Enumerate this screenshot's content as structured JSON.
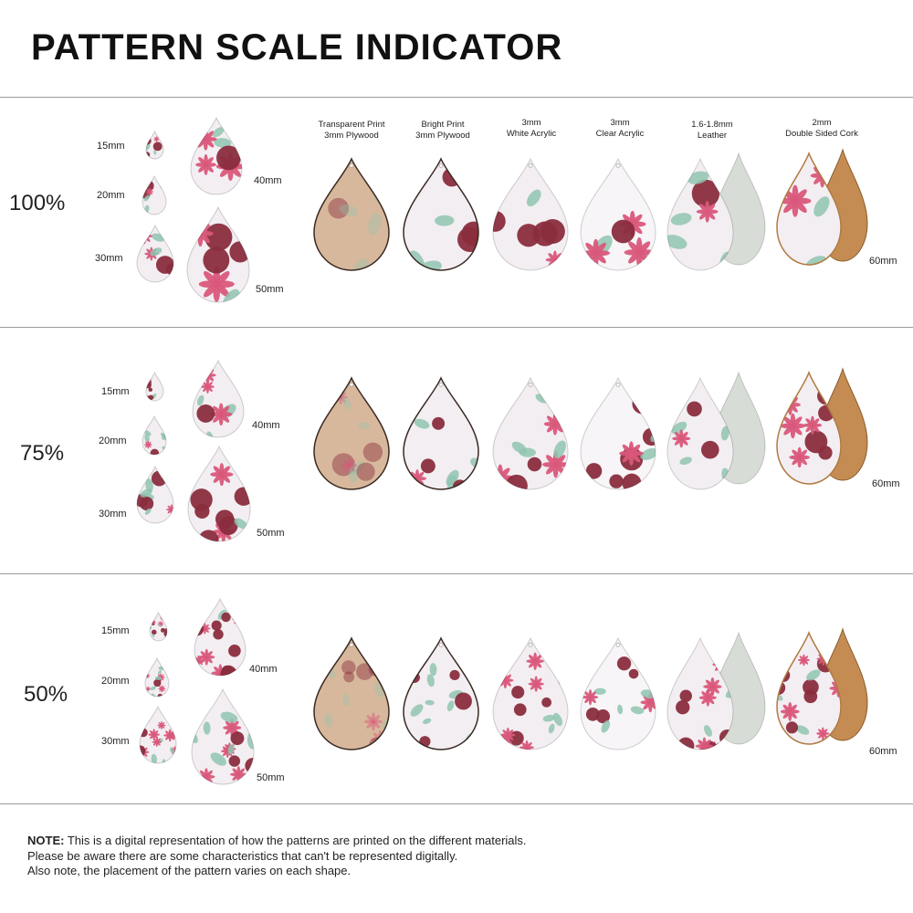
{
  "title": "PATTERN SCALE INDICATOR",
  "materials": [
    {
      "line1": "Transparent Print",
      "line2": "3mm Plywood"
    },
    {
      "line1": "Bright Print",
      "line2": "3mm Plywood"
    },
    {
      "line1": "3mm",
      "line2": "White Acrylic"
    },
    {
      "line1": "3mm",
      "line2": "Clear Acrylic"
    },
    {
      "line1": "1.6-1.8mm",
      "line2": "Leather"
    },
    {
      "line1": "2mm",
      "line2": "Double Sided Cork"
    }
  ],
  "sections": [
    {
      "scale": "100%",
      "sizes": {
        "s15": "15mm",
        "s20": "20mm",
        "s30": "30mm",
        "s40": "40mm",
        "s50": "50mm"
      },
      "size60": "60mm"
    },
    {
      "scale": "75%",
      "sizes": {
        "s15": "15mm",
        "s20": "20mm",
        "s30": "30mm",
        "s40": "40mm",
        "s50": "50mm"
      },
      "size60": "60mm"
    },
    {
      "scale": "50%",
      "sizes": {
        "s15": "15mm",
        "s20": "20mm",
        "s30": "30mm",
        "s40": "40mm",
        "s50": "50mm"
      },
      "size60": "60mm"
    }
  ],
  "note": {
    "label": "NOTE:",
    "line1": " This is a digital representation of how the patterns are printed on the different materials.",
    "line2": "Please be aware there are some characteristics that can't be represented digitally.",
    "line3": "Also note, the placement of the pattern varies on each shape."
  },
  "colors": {
    "rose": "#8a2d3e",
    "pink": "#d9577a",
    "leaf": "#8fc4b0",
    "white_bg": "#f3eef2",
    "plywood": "#d8b89c",
    "leather": "#d7dcd6",
    "cork": "#c48c52"
  }
}
